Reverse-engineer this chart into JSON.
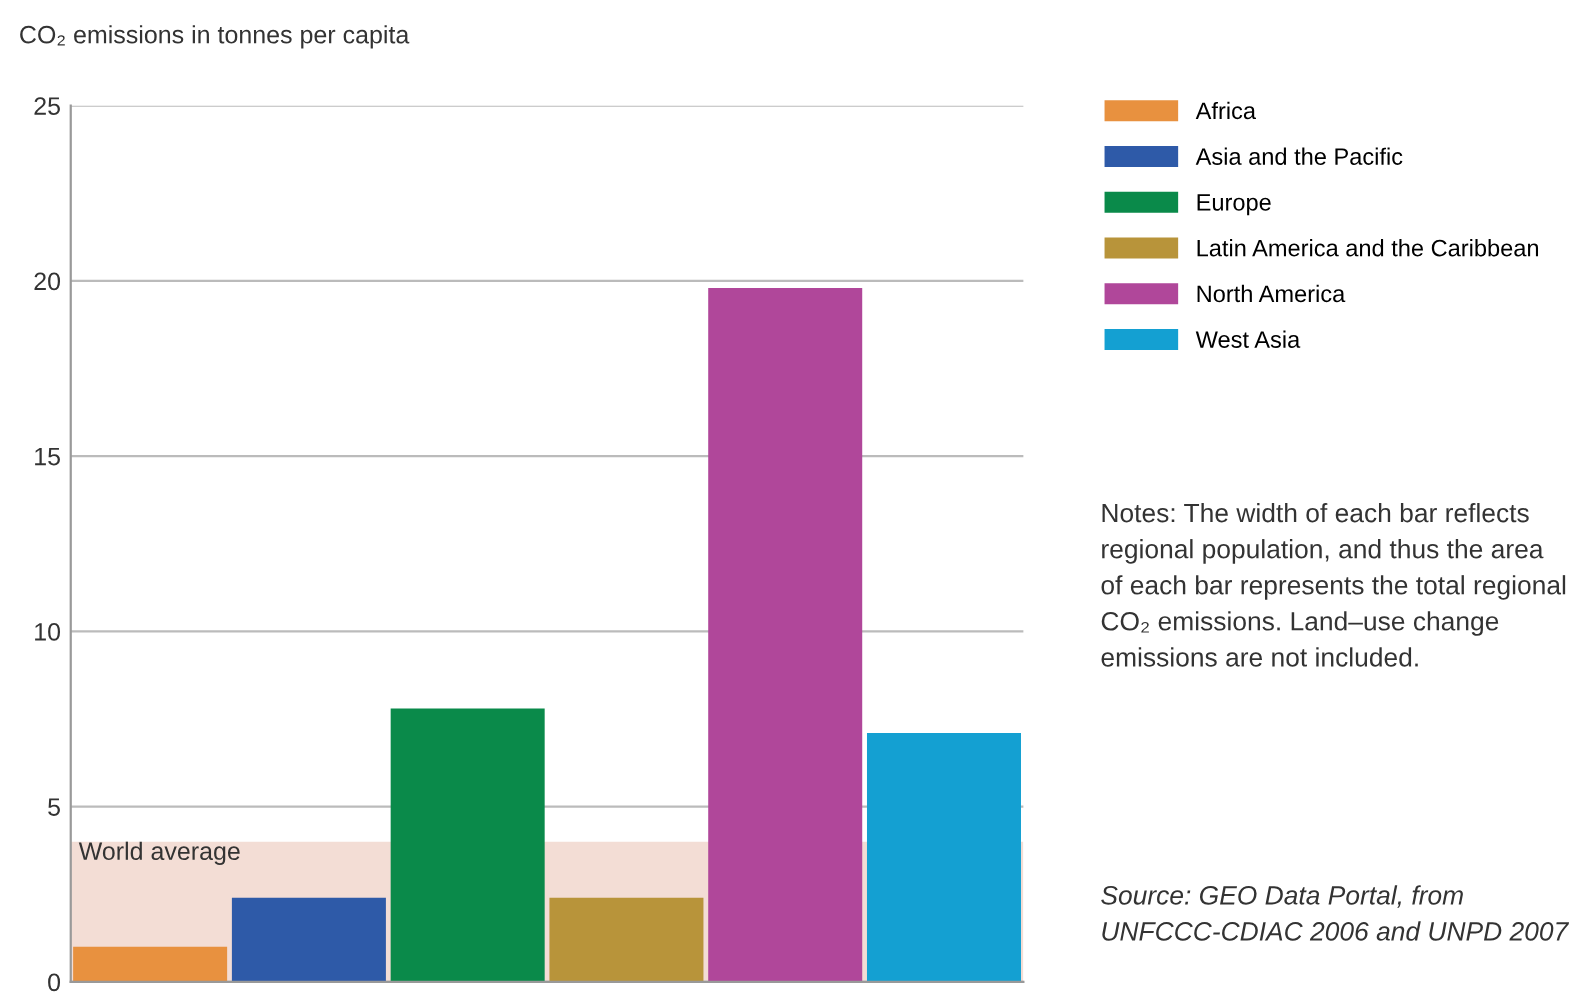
{
  "chart_data": {
    "type": "bar",
    "ylabel": "CO₂ emissions in tonnes per capita",
    "categories": [
      null,
      null,
      null,
      null,
      null,
      null
    ],
    "series": [
      {
        "name": "Africa",
        "color": "#e8913f",
        "values": [
          1.0,
          null,
          null,
          null,
          null,
          null
        ]
      },
      {
        "name": "Asia and the Pacific",
        "color": "#2e5aa8",
        "values": [
          null,
          2.4,
          null,
          null,
          null,
          null
        ]
      },
      {
        "name": "Europe",
        "color": "#0a8a4a",
        "values": [
          null,
          null,
          7.8,
          null,
          null,
          null
        ]
      },
      {
        "name": "Latin America and the Caribbean",
        "color": "#b8943a",
        "values": [
          null,
          null,
          null,
          2.4,
          null,
          null
        ]
      },
      {
        "name": "North America",
        "color": "#b0479a",
        "values": [
          null,
          null,
          null,
          null,
          19.8,
          null
        ]
      },
      {
        "name": "West Asia",
        "color": "#14a0d2",
        "values": [
          null,
          null,
          null,
          null,
          null,
          7.1
        ]
      }
    ],
    "stacked": true,
    "ylim": [
      0,
      25
    ],
    "yticks": [
      0,
      5,
      10,
      15,
      20,
      25
    ],
    "grid": "y",
    "legend": "right",
    "bands": [
      {
        "axis": "y",
        "from": 0,
        "to": 4,
        "label": "World average",
        "color": "#f3ddd5"
      }
    ],
    "annotations": [
      "Notes: The width of each bar reflects regional population, and thus the area of each bar represents the total regional CO₂ emissions. Land–use change emissions are not included.",
      "Source: GEO Data Portal, from UNFCCC-CDIAC 2006 and UNPD 2007"
    ]
  }
}
